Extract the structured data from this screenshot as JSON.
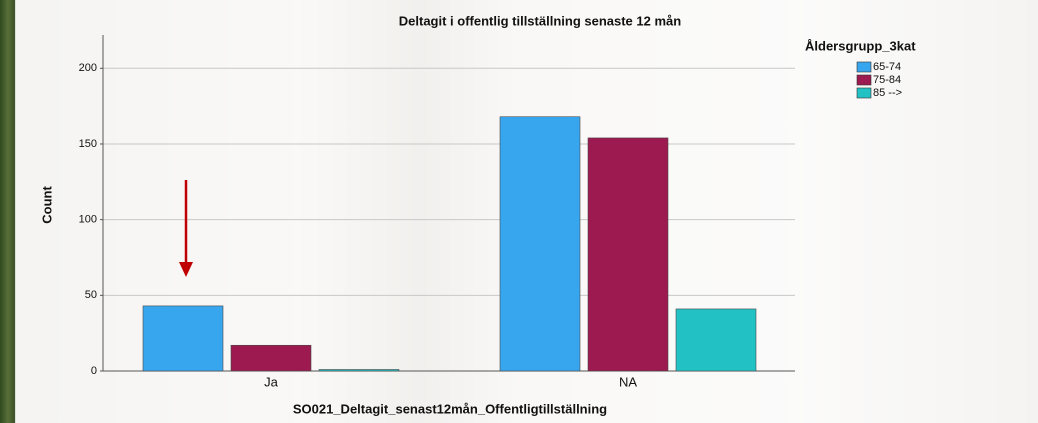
{
  "chart_data": {
    "type": "bar",
    "title": "Deltagit i offentlig tillställning senaste 12 mån",
    "x_label": "SO021_Deltagit_senast12mån_Offentligtillställning",
    "y_label": "Count",
    "legend_title": "Åldersgrupp_3kat",
    "categories": [
      "Ja",
      "NA"
    ],
    "series": [
      {
        "name": "65-74",
        "color": "#37a6ee",
        "values": [
          43,
          168
        ]
      },
      {
        "name": "75-84",
        "color": "#9c1a4f",
        "values": [
          17,
          154
        ]
      },
      {
        "name": "85 -->",
        "color": "#22c1c3",
        "values": [
          1,
          41
        ]
      }
    ],
    "ylim": [
      0,
      222
    ],
    "yticks": [
      0,
      50,
      100,
      150,
      200
    ],
    "grid": true,
    "legend": "right"
  }
}
